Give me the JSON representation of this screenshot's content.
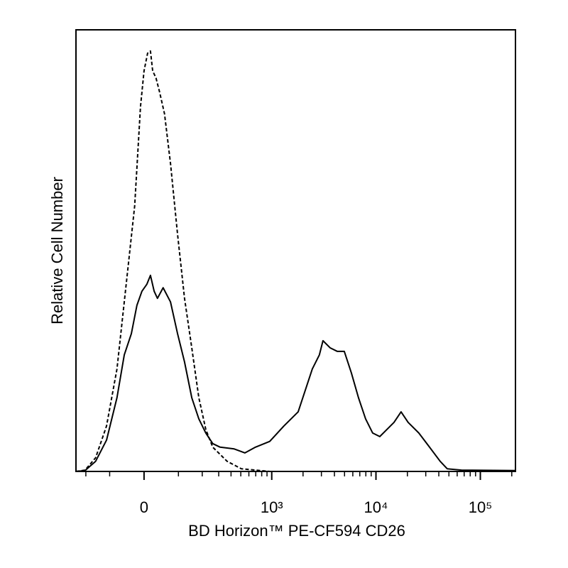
{
  "chart_data": {
    "type": "histogram-overlay",
    "x_label": "BD Horizon™ PE-CF594 CD26",
    "y_label": "Relative Cell Number",
    "xscale": "arcsinh",
    "arcsinh_cofactor": 120,
    "xlim": [
      -256,
      217000
    ],
    "ylim": [
      0,
      100
    ],
    "xticks": [
      0,
      {
        "value": 1000,
        "label": "10³"
      },
      {
        "value": 10000,
        "label": "10⁴"
      },
      {
        "value": 100000,
        "label": "10⁵"
      }
    ],
    "xminorticks": [
      -200,
      -100,
      100,
      200,
      300,
      400,
      500,
      600,
      700,
      800,
      900,
      2000,
      3000,
      4000,
      5000,
      6000,
      7000,
      8000,
      9000,
      20000,
      30000,
      40000,
      50000,
      60000,
      70000,
      80000,
      90000,
      200000
    ],
    "series": [
      {
        "color": "#000000",
        "dashed": true,
        "x": [
          -256,
          -204,
          -154,
          -111,
          -76,
          -44,
          -25,
          -9.4,
          0,
          9.4,
          17,
          23,
          32,
          42,
          56,
          74,
          97,
          122,
          151,
          183,
          219,
          260,
          365,
          506,
          956,
          217000
        ],
        "values": [
          0,
          0.3,
          3.1,
          10.3,
          23.2,
          45.7,
          60.1,
          82.6,
          90.7,
          94.7,
          95.2,
          90.7,
          89.1,
          85.9,
          81.0,
          69.8,
          53.7,
          39.2,
          28.0,
          16.7,
          9.5,
          5.5,
          2.3,
          0.6,
          0,
          0
        ]
      },
      {
        "color": "#000000",
        "dashed": false,
        "x": [
          -256,
          -204,
          -154,
          -111,
          -76,
          -54,
          -34,
          -19,
          -5.6,
          7.5,
          17,
          27,
          36,
          52,
          74,
          97,
          122,
          151,
          183,
          219,
          260,
          310,
          430,
          549,
          696,
          956,
          1310,
          1795,
          2454,
          2870,
          3106,
          3633,
          4250,
          4970,
          5815,
          6800,
          7955,
          9300,
          10880,
          12720,
          14880,
          17400,
          20340,
          25740,
          32600,
          41200,
          48200,
          65900,
          217000
        ],
        "values": [
          0,
          0.2,
          2.3,
          7.1,
          16.7,
          26.4,
          31.2,
          37.6,
          40.8,
          42.4,
          44.4,
          40.8,
          39.2,
          41.6,
          38.4,
          31.2,
          24.8,
          16.7,
          11.9,
          8.7,
          6.3,
          5.5,
          5.1,
          4.2,
          5.5,
          6.8,
          10.3,
          13.5,
          23.2,
          26.4,
          29.6,
          28.0,
          27.2,
          27.2,
          22.3,
          16.7,
          11.9,
          8.7,
          7.9,
          9.5,
          11.1,
          13.5,
          11.1,
          8.7,
          5.5,
          2.3,
          0.6,
          0.3,
          0.2
        ]
      }
    ]
  }
}
